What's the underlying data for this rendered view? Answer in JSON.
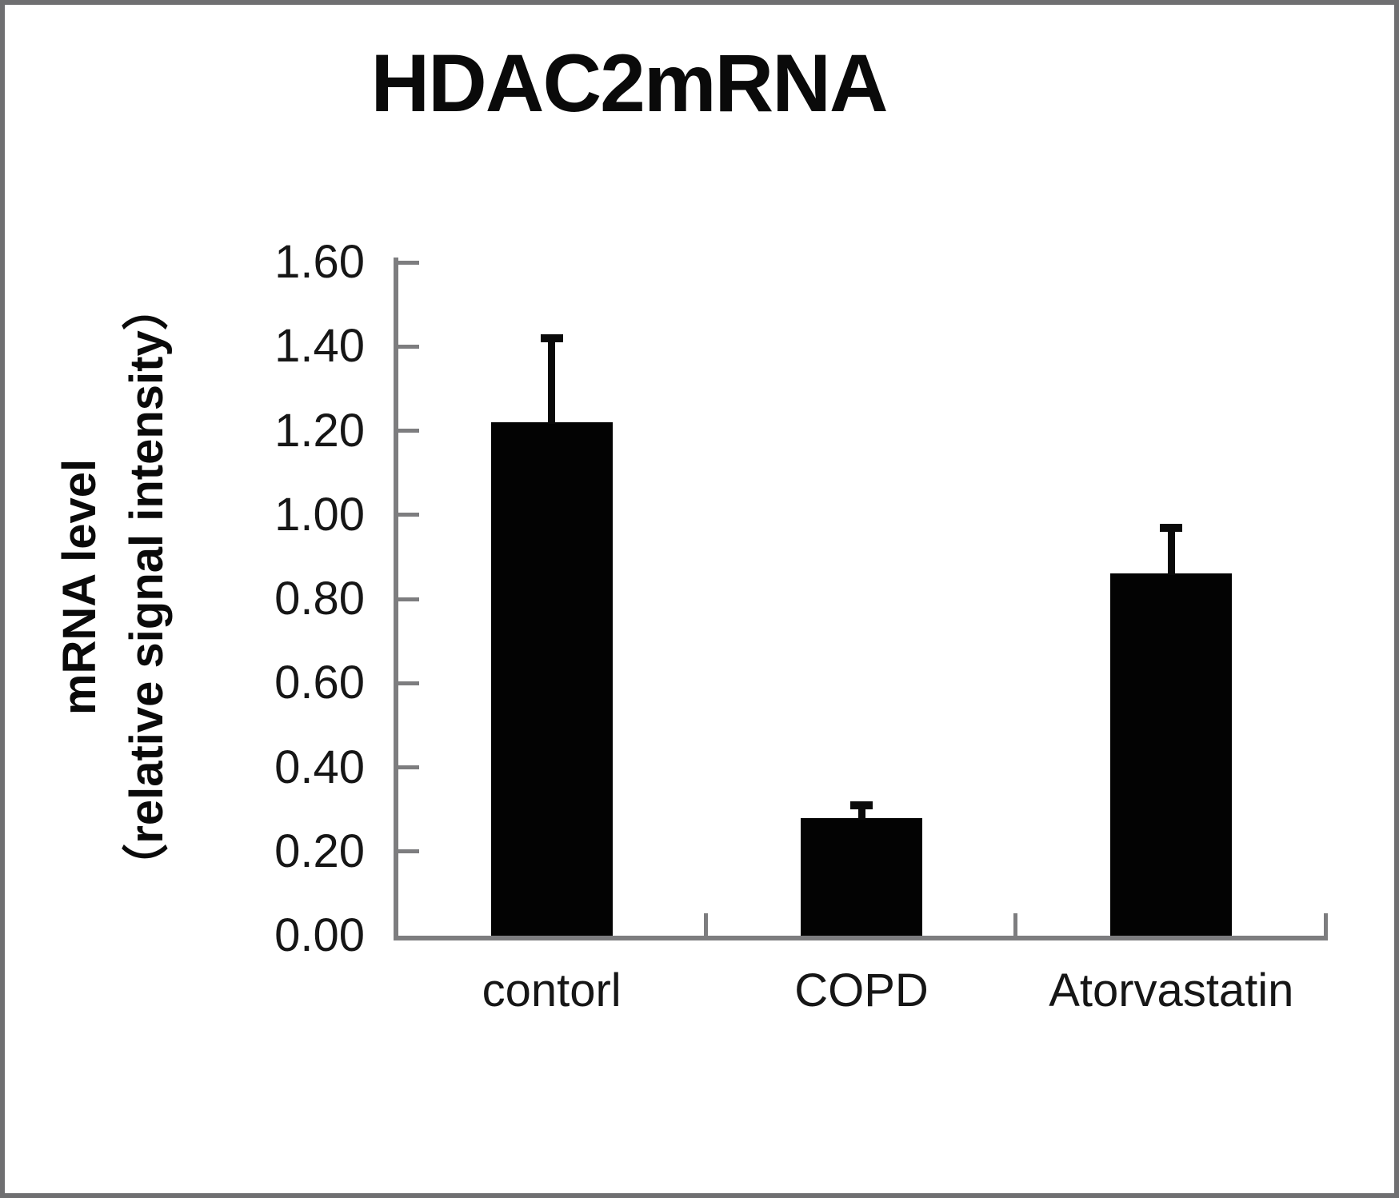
{
  "chart_data": {
    "type": "bar",
    "title": "HDAC2mRNA",
    "ylabel_line1": "mRNA level",
    "ylabel_line2": "（relative signal intensity）",
    "categories": [
      "contorl",
      "COPD",
      "Atorvastatin"
    ],
    "values": [
      1.22,
      0.28,
      0.86
    ],
    "errors_plus": [
      0.2,
      0.03,
      0.11
    ],
    "ylim": [
      0.0,
      1.6
    ],
    "ytick_step": 0.2,
    "ytick_labels": [
      "0.00",
      "0.20",
      "0.40",
      "0.60",
      "0.80",
      "1.00",
      "1.20",
      "1.40",
      "1.60"
    ],
    "xlabel": "",
    "grid": false,
    "legend_position": "none",
    "bar_color": "#030303",
    "error_bar_color": "#0a0a0a",
    "axis_color": "#7d7d7f",
    "frame_color": "#6f6f71",
    "text_color": "#161616"
  }
}
